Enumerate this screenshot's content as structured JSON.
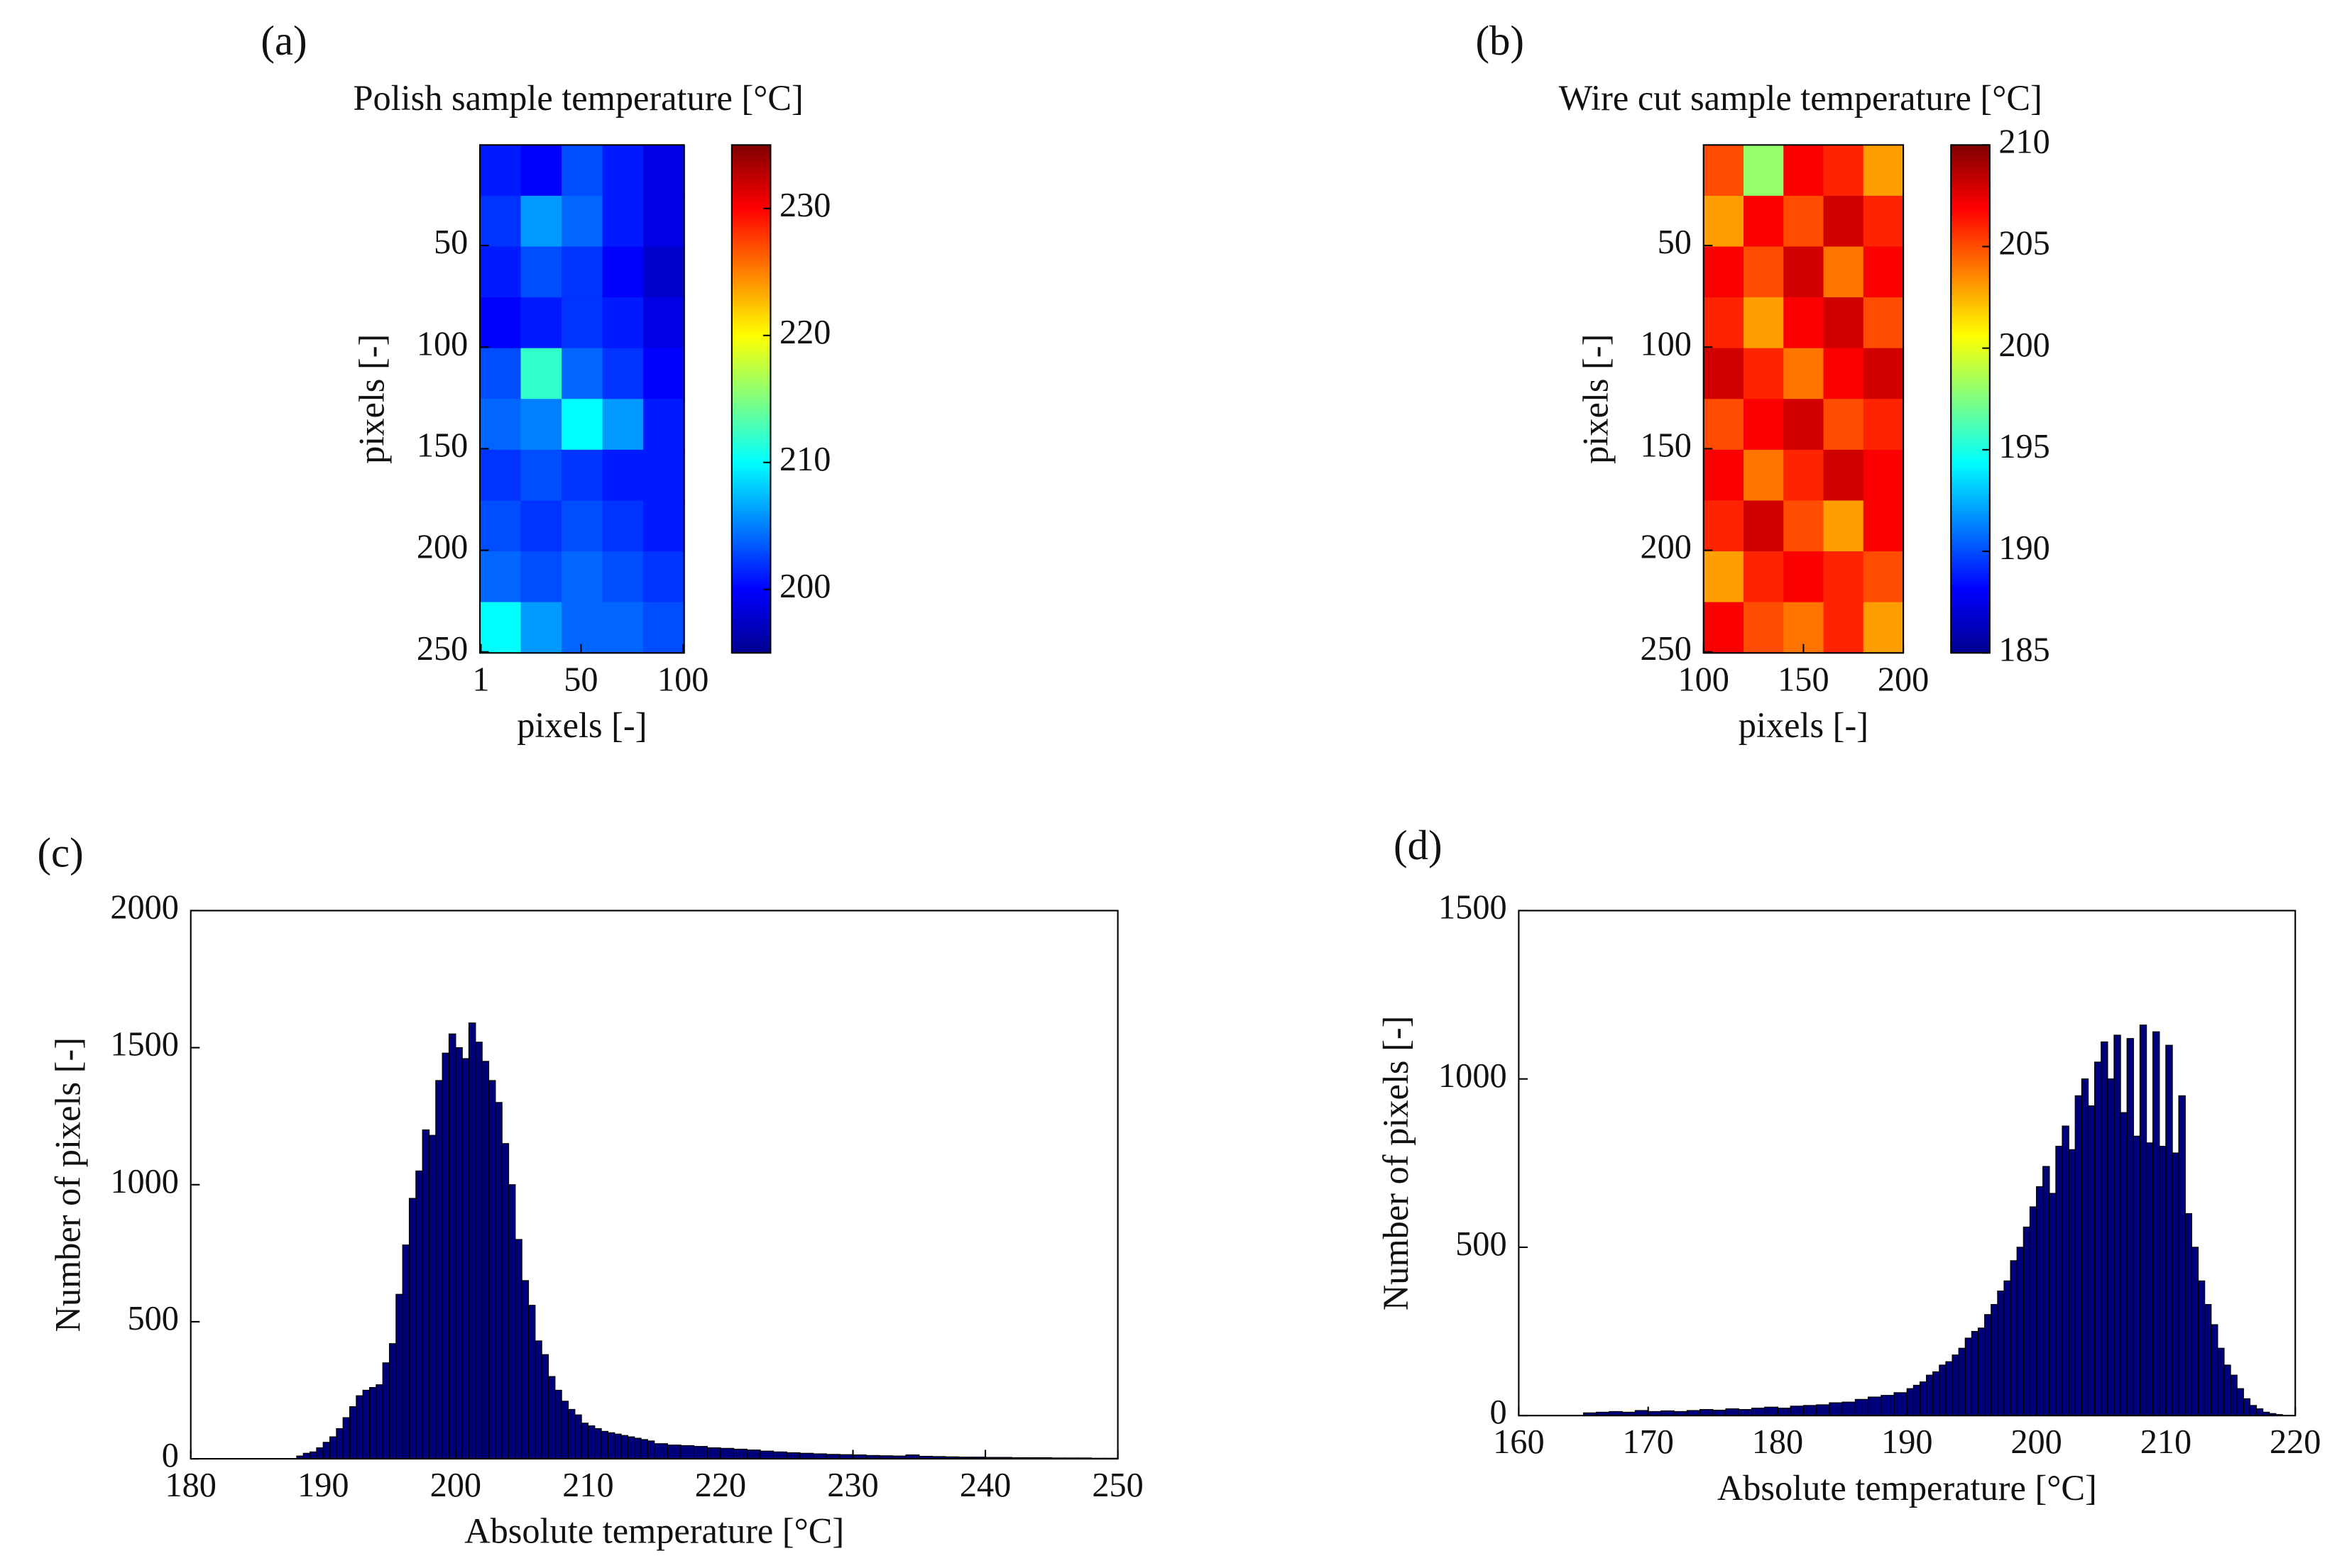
{
  "chart_data": [
    {
      "type": "heatmap",
      "panel_label": "(a)",
      "title": "Polish sample temperature [°C]",
      "xlabel": "pixels [-]",
      "ylabel": "pixels [-]",
      "colormap": "jet",
      "xlim": [
        0.5,
        100.5
      ],
      "xticks": [
        1,
        50,
        100
      ],
      "ylim": [
        250.5,
        0.5
      ],
      "yticks": [
        50,
        100,
        150,
        200,
        250
      ],
      "clim": [
        195,
        235
      ],
      "cticks": [
        200,
        210,
        220,
        230
      ],
      "z": [
        [
          201,
          200,
          203,
          201,
          199
        ],
        [
          202,
          206,
          204,
          201,
          199
        ],
        [
          201,
          203,
          202,
          200,
          198
        ],
        [
          200,
          201,
          202,
          201,
          199
        ],
        [
          203,
          212,
          204,
          202,
          200
        ],
        [
          204,
          205,
          210,
          206,
          201
        ],
        [
          202,
          203,
          202,
          201,
          201
        ],
        [
          203,
          202,
          203,
          202,
          201
        ],
        [
          204,
          203,
          204,
          203,
          202
        ],
        [
          210,
          206,
          204,
          204,
          203
        ]
      ]
    },
    {
      "type": "heatmap",
      "panel_label": "(b)",
      "title": "Wire cut sample temperature [°C]",
      "xlabel": "pixels [-]",
      "ylabel": "pixels [-]",
      "colormap": "jet",
      "xlim": [
        100,
        200
      ],
      "xticks": [
        100,
        150,
        200
      ],
      "ylim": [
        250.5,
        0.5
      ],
      "yticks": [
        50,
        100,
        150,
        200,
        250
      ],
      "clim": [
        185,
        210
      ],
      "cticks": [
        185,
        190,
        195,
        200,
        205,
        210
      ],
      "z": [
        [
          205,
          198,
          207,
          206,
          203
        ],
        [
          203,
          207,
          205,
          208,
          206
        ],
        [
          207,
          205,
          208,
          204,
          207
        ],
        [
          206,
          203,
          207,
          208,
          205
        ],
        [
          208,
          206,
          204,
          207,
          208
        ],
        [
          205,
          207,
          208,
          205,
          206
        ],
        [
          207,
          204,
          206,
          208,
          207
        ],
        [
          206,
          208,
          205,
          203,
          207
        ],
        [
          203,
          206,
          207,
          206,
          205
        ],
        [
          207,
          205,
          204,
          206,
          203
        ]
      ]
    },
    {
      "type": "histogram",
      "panel_label": "(c)",
      "xlabel": "Absolute temperature [°C]",
      "ylabel": "Number of pixels [-]",
      "color": "#00007a",
      "xlim": [
        180,
        250
      ],
      "xticks": [
        180,
        190,
        200,
        210,
        220,
        230,
        240,
        250
      ],
      "ylim": [
        0,
        2000
      ],
      "yticks": [
        0,
        500,
        1000,
        1500,
        2000
      ],
      "bins": [
        188,
        188.5,
        189,
        189.5,
        190,
        190.5,
        191,
        191.5,
        192,
        192.5,
        193,
        193.5,
        194,
        194.5,
        195,
        195.5,
        196,
        196.5,
        197,
        197.5,
        198,
        198.5,
        199,
        199.5,
        200,
        200.5,
        201,
        201.5,
        202,
        202.5,
        203,
        203.5,
        204,
        204.5,
        205,
        205.5,
        206,
        206.5,
        207,
        207.5,
        208,
        208.5,
        209,
        209.5,
        210,
        210.5,
        211,
        211.5,
        212,
        212.5,
        213,
        213.5,
        214,
        214.5,
        215,
        216,
        217,
        218,
        219,
        220,
        221,
        222,
        223,
        224,
        225,
        226,
        227,
        228,
        229,
        230,
        231,
        232,
        233,
        234,
        235,
        236,
        237,
        238,
        239,
        240,
        241,
        242,
        243,
        244,
        245,
        246,
        247,
        248,
        249,
        250
      ],
      "counts": [
        10,
        20,
        25,
        40,
        60,
        80,
        110,
        150,
        190,
        230,
        250,
        260,
        270,
        350,
        420,
        600,
        780,
        950,
        1050,
        1200,
        1180,
        1380,
        1480,
        1550,
        1500,
        1460,
        1590,
        1520,
        1450,
        1380,
        1300,
        1150,
        1000,
        800,
        650,
        560,
        430,
        380,
        300,
        250,
        210,
        180,
        160,
        130,
        120,
        110,
        100,
        95,
        90,
        85,
        80,
        75,
        70,
        65,
        55,
        50,
        48,
        45,
        40,
        38,
        35,
        32,
        28,
        25,
        22,
        20,
        18,
        16,
        15,
        14,
        12,
        11,
        10,
        14,
        9,
        8,
        7,
        6,
        6,
        5,
        5,
        4,
        4,
        4,
        3,
        3,
        3,
        2,
        2
      ]
    },
    {
      "type": "histogram",
      "panel_label": "(d)",
      "xlabel": "Absolute temperature [°C]",
      "ylabel": "Number of pixels [-]",
      "color": "#00007a",
      "xlim": [
        160,
        220
      ],
      "xticks": [
        160,
        170,
        180,
        190,
        200,
        210,
        220
      ],
      "ylim": [
        0,
        1500
      ],
      "yticks": [
        0,
        500,
        1000,
        1500
      ],
      "bins": [
        165,
        166,
        167,
        168,
        169,
        170,
        171,
        172,
        173,
        174,
        175,
        176,
        177,
        178,
        179,
        180,
        181,
        182,
        183,
        184,
        185,
        186,
        187,
        188,
        189,
        190,
        190.5,
        191,
        191.5,
        192,
        192.5,
        193,
        193.5,
        194,
        194.5,
        195,
        195.5,
        196,
        196.5,
        197,
        197.5,
        198,
        198.5,
        199,
        199.5,
        200,
        200.5,
        201,
        201.5,
        202,
        202.5,
        203,
        203.5,
        204,
        204.5,
        205,
        205.5,
        206,
        206.5,
        207,
        207.5,
        208,
        208.5,
        209,
        209.5,
        210,
        210.5,
        211,
        211.5,
        212,
        212.5,
        213,
        213.5,
        214,
        214.5,
        215,
        215.5,
        216,
        216.5,
        217,
        217.5,
        218,
        218.5,
        219
      ],
      "counts": [
        8,
        10,
        12,
        10,
        15,
        12,
        14,
        12,
        15,
        18,
        16,
        20,
        18,
        22,
        25,
        22,
        28,
        30,
        32,
        38,
        40,
        48,
        55,
        60,
        68,
        80,
        90,
        100,
        120,
        130,
        150,
        160,
        180,
        200,
        230,
        250,
        260,
        300,
        330,
        370,
        400,
        460,
        500,
        560,
        620,
        680,
        740,
        660,
        800,
        860,
        790,
        950,
        1000,
        920,
        1050,
        1110,
        1000,
        1130,
        900,
        1120,
        830,
        1160,
        810,
        1140,
        800,
        1100,
        780,
        950,
        600,
        500,
        400,
        330,
        270,
        200,
        150,
        120,
        80,
        50,
        30,
        20,
        10,
        6,
        3
      ]
    }
  ]
}
